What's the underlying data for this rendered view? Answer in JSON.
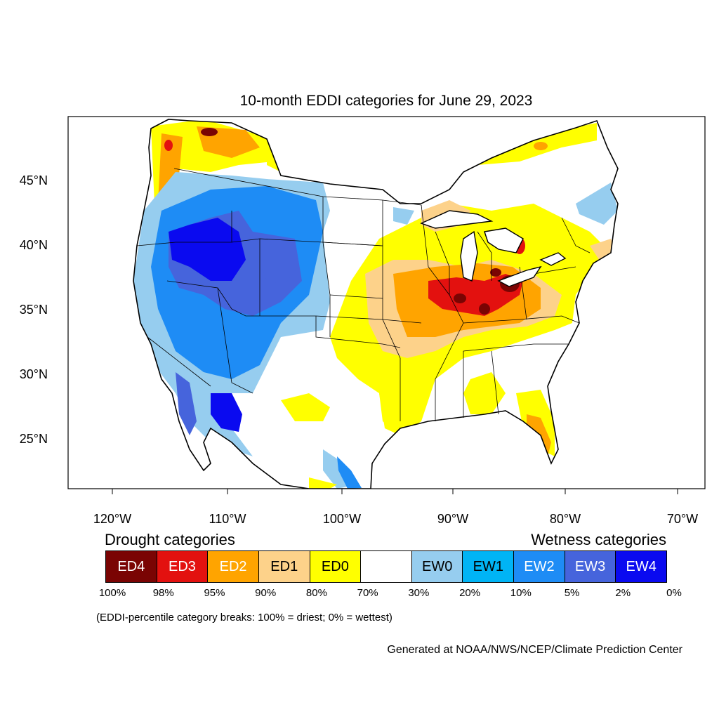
{
  "title": "10-month EDDI categories for June 29, 2023",
  "map": {
    "lat_ticks": [
      "45°N",
      "40°N",
      "35°N",
      "30°N",
      "25°N"
    ],
    "lon_ticks": [
      "120°W",
      "110°W",
      "100°W",
      "90°W",
      "80°W",
      "70°W"
    ]
  },
  "legend": {
    "drought_heading": "Drought categories",
    "wetness_heading": "Wetness categories",
    "categories": [
      {
        "label": "ED4",
        "color": "#7a0403",
        "text_color": "#ffffff"
      },
      {
        "label": "ED3",
        "color": "#e3110f",
        "text_color": "#ffffff"
      },
      {
        "label": "ED2",
        "color": "#ffa400",
        "text_color": "#ffffff"
      },
      {
        "label": "ED1",
        "color": "#fdd28a",
        "text_color": "#000000"
      },
      {
        "label": "ED0",
        "color": "#ffff00",
        "text_color": "#000000"
      },
      {
        "label": "",
        "color": "#ffffff",
        "text_color": "#000000"
      },
      {
        "label": "EW0",
        "color": "#96cdef",
        "text_color": "#000000"
      },
      {
        "label": "EW1",
        "color": "#00b4f5",
        "text_color": "#000000"
      },
      {
        "label": "EW2",
        "color": "#1e8cf5",
        "text_color": "#ffffff"
      },
      {
        "label": "EW3",
        "color": "#4664dc",
        "text_color": "#ffffff"
      },
      {
        "label": "EW4",
        "color": "#0a0af0",
        "text_color": "#ffffff"
      }
    ],
    "breaks": [
      "100%",
      "98%",
      "95%",
      "90%",
      "80%",
      "70%",
      "30%",
      "20%",
      "10%",
      "5%",
      "2%",
      "0%"
    ]
  },
  "note": "(EDDI-percentile category breaks: 100% = driest; 0% = wettest)",
  "credit": "Generated at NOAA/NWS/NCEP/Climate Prediction Center"
}
